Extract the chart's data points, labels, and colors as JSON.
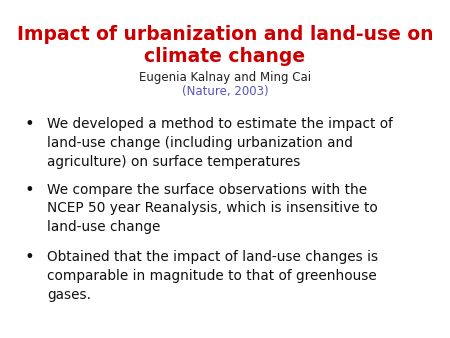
{
  "title_line1": "Impact of urbanization and land-use on",
  "title_line2": "climate change",
  "title_color": "#cc0000",
  "author_line": "Eugenia Kalnay and Ming Cai",
  "author_color": "#222222",
  "journal_line": "(Nature, 2003)",
  "journal_color": "#5555bb",
  "bullets": [
    "We developed a method to estimate the impact of\nland-use change (including urbanization and\nagriculture) on surface temperatures",
    "We compare the surface observations with the\nNCEP 50 year Reanalysis, which is insensitive to\nland-use change",
    "Obtained that the impact of land-use changes is\ncomparable in magnitude to that of greenhouse\ngases."
  ],
  "bullet_color": "#111111",
  "background_color": "#ffffff",
  "title_fontsize": 13.5,
  "author_fontsize": 8.5,
  "journal_fontsize": 8.5,
  "bullet_fontsize": 9.8
}
